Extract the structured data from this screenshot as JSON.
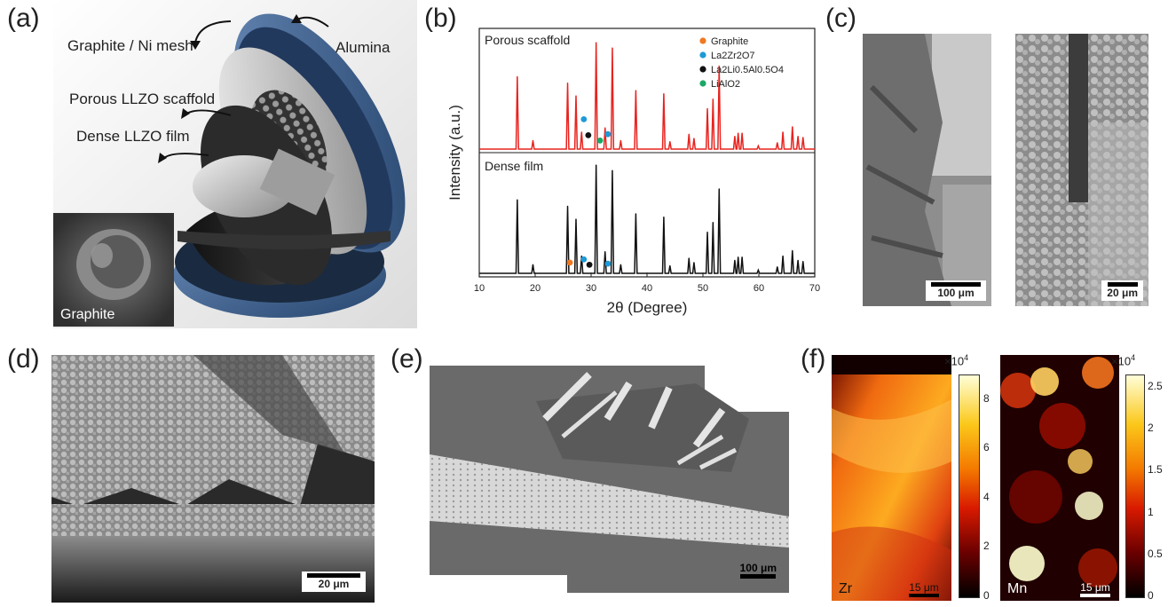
{
  "panel_labels": {
    "a": "(a)",
    "b": "(b)",
    "c": "(c)",
    "d": "(d)",
    "e": "(e)",
    "f": "(f)"
  },
  "panel_a": {
    "callouts": {
      "graphite_ni_mesh": "Graphite / Ni mesh",
      "alumina": "Alumina",
      "porous_scaffold": "Porous LLZO scaffold",
      "dense_film": "Dense LLZO film"
    },
    "inset_label": "Graphite"
  },
  "chart_data": {
    "type": "line",
    "xlabel": "2θ (Degree)",
    "ylabel": "Intensity (a.u.)",
    "xlim": [
      10,
      70
    ],
    "xticks": [
      10,
      20,
      30,
      40,
      50,
      60,
      70
    ],
    "legend": {
      "placement": "top-right",
      "entries": [
        {
          "label": "Graphite",
          "color": "#f07820"
        },
        {
          "label": "La2Zr2O7",
          "color": "#1e9ad6"
        },
        {
          "label": "La2Li0.5Al0.5O4",
          "color": "#111111"
        },
        {
          "label": "LiAlO2",
          "color": "#1aa866"
        }
      ]
    },
    "series": [
      {
        "name": "Porous scaffold",
        "color": "#e8231f",
        "peaks": [
          [
            16.8,
            0.68
          ],
          [
            19.6,
            0.08
          ],
          [
            25.8,
            0.62
          ],
          [
            27.3,
            0.5
          ],
          [
            28.3,
            0.16
          ],
          [
            30.9,
            1.0
          ],
          [
            32.5,
            0.2
          ],
          [
            33.8,
            0.95
          ],
          [
            35.3,
            0.08
          ],
          [
            38.0,
            0.55
          ],
          [
            43.0,
            0.52
          ],
          [
            44.1,
            0.07
          ],
          [
            47.5,
            0.14
          ],
          [
            48.4,
            0.1
          ],
          [
            50.8,
            0.38
          ],
          [
            51.8,
            0.47
          ],
          [
            52.9,
            0.78
          ],
          [
            55.7,
            0.12
          ],
          [
            56.3,
            0.15
          ],
          [
            57.0,
            0.15
          ],
          [
            59.9,
            0.03
          ],
          [
            63.3,
            0.06
          ],
          [
            64.3,
            0.16
          ],
          [
            66.0,
            0.21
          ],
          [
            67.0,
            0.12
          ],
          [
            67.9,
            0.11
          ]
        ],
        "markers": [
          {
            "x": 28.7,
            "y": 0.23,
            "phase": "La2Zr2O7"
          },
          {
            "x": 29.5,
            "y": 0.08,
            "phase": "La2Li0.5Al0.5O4"
          },
          {
            "x": 31.6,
            "y": 0.03,
            "phase": "LiAlO2"
          },
          {
            "x": 33.0,
            "y": 0.09,
            "phase": "La2Zr2O7"
          }
        ]
      },
      {
        "name": "Dense film",
        "color": "#111111",
        "peaks": [
          [
            16.8,
            0.68
          ],
          [
            19.6,
            0.08
          ],
          [
            25.8,
            0.62
          ],
          [
            27.3,
            0.5
          ],
          [
            28.3,
            0.16
          ],
          [
            30.9,
            1.0
          ],
          [
            32.5,
            0.2
          ],
          [
            33.8,
            0.95
          ],
          [
            35.3,
            0.08
          ],
          [
            38.0,
            0.55
          ],
          [
            43.0,
            0.52
          ],
          [
            44.1,
            0.07
          ],
          [
            47.5,
            0.14
          ],
          [
            48.4,
            0.1
          ],
          [
            50.8,
            0.38
          ],
          [
            51.8,
            0.47
          ],
          [
            52.9,
            0.78
          ],
          [
            55.7,
            0.12
          ],
          [
            56.3,
            0.15
          ],
          [
            57.0,
            0.15
          ],
          [
            59.9,
            0.03
          ],
          [
            63.3,
            0.06
          ],
          [
            64.3,
            0.16
          ],
          [
            66.0,
            0.21
          ],
          [
            67.0,
            0.12
          ],
          [
            67.9,
            0.11
          ]
        ],
        "markers": [
          {
            "x": 26.2,
            "y": 0.05,
            "phase": "Graphite"
          },
          {
            "x": 28.7,
            "y": 0.08,
            "phase": "La2Zr2O7"
          },
          {
            "x": 29.7,
            "y": 0.03,
            "phase": "La2Li0.5Al0.5O4"
          },
          {
            "x": 33.0,
            "y": 0.04,
            "phase": "La2Zr2O7"
          }
        ]
      }
    ]
  },
  "panel_c": {
    "scalebar_left": "100 μm",
    "scalebar_right": "20 μm"
  },
  "panel_d": {
    "scalebar": "20 μm"
  },
  "panel_e": {
    "scalebar": "100 μm"
  },
  "panel_f": {
    "zr": {
      "element": "Zr",
      "scalebar": "15 μm",
      "multiplier": "×10",
      "exponent": "4",
      "ticks": [
        "8",
        "6",
        "4",
        "2",
        "0"
      ]
    },
    "mn": {
      "element": "Mn",
      "scalebar": "15 μm",
      "multiplier": "×10",
      "exponent": "4",
      "ticks": [
        "2.5",
        "2",
        "1.5",
        "1",
        "0.5",
        "0"
      ]
    }
  }
}
